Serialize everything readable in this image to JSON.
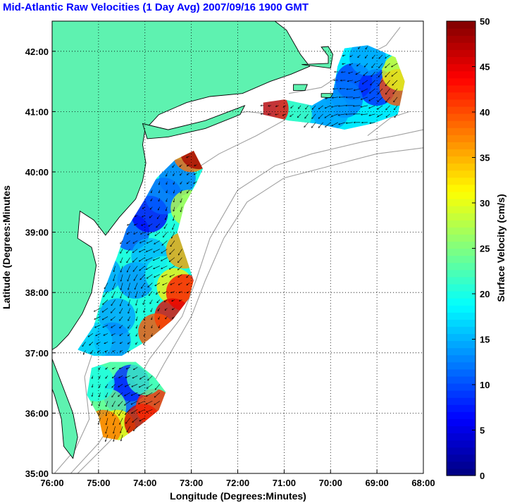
{
  "chart_data": {
    "type": "heatmap",
    "title": "Mid-Atlantic Raw Velocities (1 Day Avg) 2007/09/16 1900 GMT",
    "xlabel": "Longitude (Degrees:Minutes)",
    "ylabel": "Latitude (Degrees:Minutes",
    "x_ticks": [
      {
        "value": -76,
        "label": "76:00"
      },
      {
        "value": -75,
        "label": "75:00"
      },
      {
        "value": -74,
        "label": "74:00"
      },
      {
        "value": -73,
        "label": "73:00"
      },
      {
        "value": -72,
        "label": "72:00"
      },
      {
        "value": -71,
        "label": "71:00"
      },
      {
        "value": -70,
        "label": "70:00"
      },
      {
        "value": -69,
        "label": "69:00"
      },
      {
        "value": -68,
        "label": "68:00"
      }
    ],
    "y_ticks": [
      {
        "value": 35,
        "label": "35:00"
      },
      {
        "value": 36,
        "label": "36:00"
      },
      {
        "value": 37,
        "label": "37:00"
      },
      {
        "value": 38,
        "label": "38:00"
      },
      {
        "value": 39,
        "label": "39:00"
      },
      {
        "value": 40,
        "label": "40:00"
      },
      {
        "value": 41,
        "label": "41:00"
      },
      {
        "value": 42,
        "label": "42:00"
      }
    ],
    "xlim": [
      -76,
      -68
    ],
    "ylim": [
      35,
      42.5
    ],
    "grid": true,
    "colorbar": {
      "label": "Surface Velocity (cm/s)",
      "range": [
        0,
        50
      ],
      "ticks": [
        {
          "value": 0,
          "label": "0"
        },
        {
          "value": 5,
          "label": "5"
        },
        {
          "value": 10,
          "label": "10"
        },
        {
          "value": 15,
          "label": "15"
        },
        {
          "value": 20,
          "label": "20"
        },
        {
          "value": 25,
          "label": "25"
        },
        {
          "value": 30,
          "label": "30"
        },
        {
          "value": 35,
          "label": "35"
        },
        {
          "value": 40,
          "label": "40"
        },
        {
          "value": 45,
          "label": "45"
        },
        {
          "value": 50,
          "label": "50"
        }
      ],
      "colormap": "jet"
    },
    "colors": {
      "land": "#5ef2b0",
      "coast": "#000000",
      "bathymetry": "#a0a0a0",
      "grid": "#000000",
      "title": "#0000ff"
    },
    "velocity_regions": [
      {
        "name": "mid-atlantic-bight",
        "outline": [
          [
            -75.45,
            37.05
          ],
          [
            -75.1,
            37.45
          ],
          [
            -74.9,
            38.0
          ],
          [
            -74.6,
            38.6
          ],
          [
            -74.4,
            39.05
          ],
          [
            -74.0,
            39.55
          ],
          [
            -73.75,
            39.9
          ],
          [
            -73.35,
            40.2
          ],
          [
            -72.95,
            40.35
          ],
          [
            -72.75,
            40.05
          ],
          [
            -72.9,
            39.8
          ],
          [
            -73.15,
            39.45
          ],
          [
            -73.3,
            39.0
          ],
          [
            -73.1,
            38.55
          ],
          [
            -72.95,
            38.2
          ],
          [
            -73.05,
            37.9
          ],
          [
            -73.4,
            37.55
          ],
          [
            -73.95,
            37.2
          ],
          [
            -74.5,
            36.95
          ],
          [
            -75.1,
            36.95
          ]
        ],
        "speeds": [
          [
            -74.2,
            38.2,
            13
          ],
          [
            -74.6,
            37.6,
            14
          ],
          [
            -74.3,
            39.0,
            10
          ],
          [
            -73.9,
            39.3,
            6
          ],
          [
            -73.6,
            39.6,
            11
          ],
          [
            -73.3,
            39.9,
            12
          ],
          [
            -74.7,
            37.2,
            13
          ],
          [
            -73.9,
            38.6,
            15
          ],
          [
            -73.6,
            38.3,
            20
          ],
          [
            -73.35,
            38.1,
            32
          ],
          [
            -73.15,
            38.0,
            43
          ],
          [
            -73.15,
            38.7,
            36
          ],
          [
            -73.05,
            39.4,
            28
          ],
          [
            -73.4,
            37.6,
            45
          ],
          [
            -73.75,
            37.35,
            40
          ],
          [
            -73.0,
            40.3,
            38
          ],
          [
            -72.85,
            40.35,
            48
          ],
          [
            -75.1,
            37.2,
            16
          ],
          [
            -74.9,
            38.3,
            14
          ]
        ]
      },
      {
        "name": "carolina-shelf",
        "outline": [
          [
            -75.0,
            35.95
          ],
          [
            -74.9,
            35.6
          ],
          [
            -74.55,
            35.55
          ],
          [
            -74.1,
            35.8
          ],
          [
            -73.7,
            36.05
          ],
          [
            -73.55,
            36.35
          ],
          [
            -73.8,
            36.6
          ],
          [
            -74.2,
            36.85
          ],
          [
            -74.75,
            36.85
          ],
          [
            -75.15,
            36.75
          ],
          [
            -75.25,
            36.3
          ]
        ],
        "speeds": [
          [
            -74.5,
            36.3,
            10
          ],
          [
            -74.3,
            36.5,
            8
          ],
          [
            -74.8,
            36.1,
            24
          ],
          [
            -74.6,
            35.75,
            32
          ],
          [
            -74.05,
            35.85,
            46
          ],
          [
            -73.8,
            36.1,
            42
          ],
          [
            -74.9,
            35.75,
            38
          ],
          [
            -75.05,
            36.5,
            20
          ],
          [
            -74.0,
            36.6,
            22
          ]
        ]
      },
      {
        "name": "southern-new-england",
        "outline": [
          [
            -71.45,
            41.15
          ],
          [
            -71.0,
            41.2
          ],
          [
            -70.4,
            41.1
          ],
          [
            -69.95,
            41.3
          ],
          [
            -69.85,
            41.75
          ],
          [
            -69.7,
            42.05
          ],
          [
            -69.2,
            42.1
          ],
          [
            -68.6,
            41.9
          ],
          [
            -68.4,
            41.5
          ],
          [
            -68.55,
            40.95
          ],
          [
            -69.1,
            40.8
          ],
          [
            -69.7,
            40.7
          ],
          [
            -70.3,
            40.8
          ],
          [
            -70.9,
            40.85
          ],
          [
            -71.45,
            40.95
          ]
        ],
        "speeds": [
          [
            -69.5,
            41.5,
            9
          ],
          [
            -69.0,
            41.4,
            8
          ],
          [
            -69.7,
            41.2,
            12
          ],
          [
            -70.3,
            41.0,
            16
          ],
          [
            -70.8,
            40.95,
            22
          ],
          [
            -71.3,
            41.05,
            44
          ],
          [
            -68.55,
            41.4,
            40
          ],
          [
            -68.5,
            41.65,
            30
          ],
          [
            -69.2,
            41.9,
            14
          ],
          [
            -70.0,
            41.0,
            14
          ]
        ]
      }
    ]
  }
}
